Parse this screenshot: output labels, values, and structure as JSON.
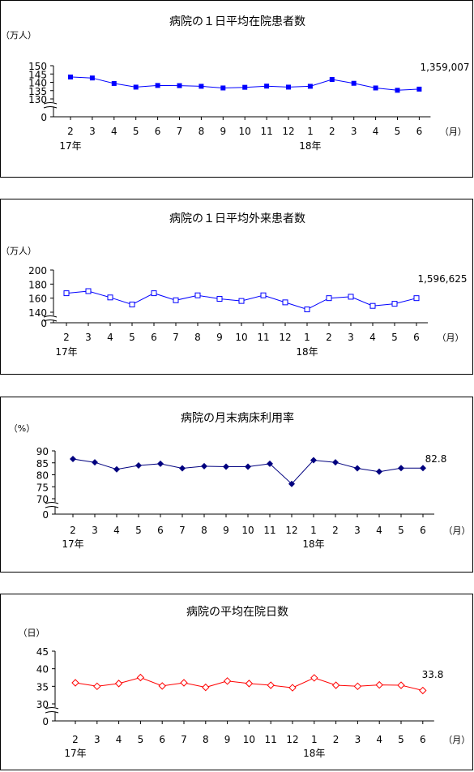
{
  "month_labels": [
    "2",
    "3",
    "4",
    "5",
    "6",
    "7",
    "8",
    "9",
    "10",
    "11",
    "12",
    "1",
    "2",
    "3",
    "4",
    "5",
    "6"
  ],
  "year_labels": [
    "17年",
    "18年"
  ],
  "month_unit": "（月）",
  "chart_data": [
    {
      "type": "line",
      "title": "病院の１日平均在院患者数",
      "ylabel": "（万人）",
      "ylim": [
        130,
        150
      ],
      "yticks": [
        "150",
        "145",
        "140",
        "135",
        "130",
        "0"
      ],
      "axis_break": true,
      "series": [
        {
          "values": [
            143.2,
            142.6,
            139.3,
            137.1,
            138.1,
            138.0,
            137.6,
            136.6,
            137.0,
            137.7,
            137.1,
            137.6,
            141.7,
            139.4,
            136.6,
            135.2,
            135.9
          ]
        }
      ],
      "annotation": "1,359,007",
      "color": "#0000ff",
      "marker": "filled-square"
    },
    {
      "type": "line",
      "title": "病院の１日平均外来患者数",
      "ylabel": "（万人）",
      "ylim": [
        140,
        200
      ],
      "yticks": [
        "200",
        "180",
        "160",
        "140",
        "0"
      ],
      "axis_break": true,
      "series": [
        {
          "values": [
            167,
            170,
            161,
            151,
            167,
            157,
            164,
            159,
            156,
            164,
            154,
            144,
            160,
            162,
            149,
            152,
            160
          ]
        }
      ],
      "annotation": "1,596,625",
      "color": "#0000ff",
      "marker": "hollow-square"
    },
    {
      "type": "line",
      "title": "病院の月末病床利用率",
      "ylabel": "（%）",
      "ylim": [
        70,
        90
      ],
      "yticks": [
        "90",
        "85",
        "80",
        "75",
        "70",
        "0"
      ],
      "axis_break": true,
      "series": [
        {
          "values": [
            86.6,
            85.2,
            82.3,
            83.9,
            84.6,
            82.7,
            83.6,
            83.4,
            83.4,
            84.6,
            76.2,
            86.1,
            85.2,
            82.7,
            81.3,
            82.8,
            82.8
          ]
        }
      ],
      "annotation": "82.8",
      "color": "#00007f",
      "marker": "filled-diamond"
    },
    {
      "type": "line",
      "title": "病院の平均在院日数",
      "ylabel": "（日）",
      "ylim": [
        30,
        45
      ],
      "yticks": [
        "45",
        "40",
        "35",
        "30",
        "0"
      ],
      "axis_break": true,
      "series": [
        {
          "values": [
            36.0,
            35.0,
            35.8,
            37.5,
            35.1,
            36.0,
            34.7,
            36.5,
            35.8,
            35.3,
            34.6,
            37.4,
            35.3,
            35.0,
            35.4,
            35.3,
            33.8
          ]
        }
      ],
      "annotation": "33.8",
      "color": "#ff0000",
      "marker": "hollow-diamond"
    }
  ]
}
